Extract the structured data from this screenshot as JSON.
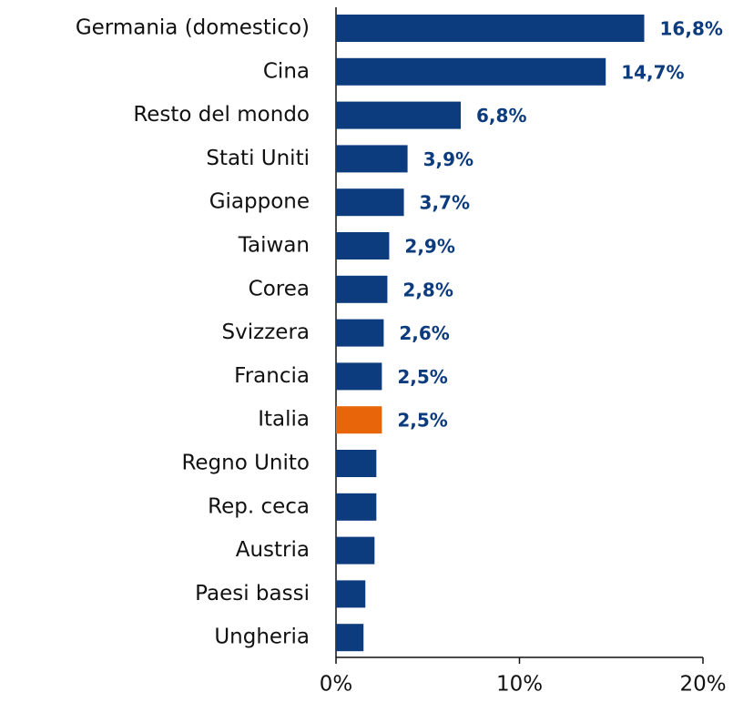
{
  "chart_data": {
    "type": "hbar",
    "categories": [
      "Germania (domestico)",
      "Cina",
      "Resto del mondo",
      "Stati Uniti",
      "Giappone",
      "Taiwan",
      "Corea",
      "Svizzera",
      "Francia",
      "Italia",
      "Regno Unito",
      "Rep. ceca",
      "Austria",
      "Paesi bassi",
      "Ungheria"
    ],
    "values": [
      16.8,
      14.7,
      6.8,
      3.9,
      3.7,
      2.9,
      2.8,
      2.6,
      2.5,
      2.5,
      2.2,
      2.2,
      2.1,
      1.6,
      1.5
    ],
    "value_labels": [
      "16,8%",
      "14,7%",
      "6,8%",
      "3,9%",
      "3,7%",
      "2,9%",
      "2,8%",
      "2,6%",
      "2,5%",
      "2,5%",
      null,
      null,
      null,
      null,
      null
    ],
    "colors": [
      "#0d3c7e",
      "#0d3c7e",
      "#0d3c7e",
      "#0d3c7e",
      "#0d3c7e",
      "#0d3c7e",
      "#0d3c7e",
      "#0d3c7e",
      "#0d3c7e",
      "#e8650a",
      "#0d3c7e",
      "#0d3c7e",
      "#0d3c7e",
      "#0d3c7e",
      "#0d3c7e"
    ],
    "xlim": [
      0,
      20
    ],
    "xticks": [
      {
        "value": 0,
        "label": "0%"
      },
      {
        "value": 10,
        "label": "10%"
      },
      {
        "value": 20,
        "label": "20%"
      }
    ]
  }
}
